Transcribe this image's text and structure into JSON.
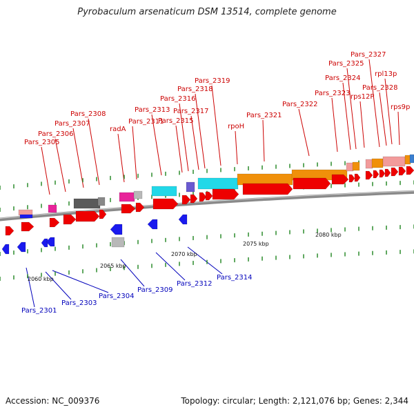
{
  "title": "Pyrobaculum arsenaticum DSM 13514, complete genome",
  "footer": {
    "accession": "Accession: NC_009376",
    "topology": "Topology: circular; Length: 2,121,076 bp; Genes: 2,344"
  },
  "scale_labels": [
    "2060 kbp",
    "2065 kbp",
    "2070 kbp",
    "2075 kbp",
    "2080 kbp"
  ],
  "top_labels": [
    "Pars_2305",
    "Pars_2306",
    "Pars_2307",
    "Pars_2308",
    "radA",
    "Pars_2311",
    "Pars_2313",
    "Pars_2315",
    "Pars_2316",
    "Pars_2317",
    "Pars_2318",
    "Pars_2319",
    "rpoH",
    "Pars_2321",
    "Pars_2322",
    "Pars_2323",
    "Pars_2324",
    "Pars_2325",
    "Pars_2327",
    "rps12P",
    "Pars_2328",
    "rpl13p",
    "rps9p"
  ],
  "bottom_labels": [
    "Pars_2301",
    "Pars_2303",
    "Pars_2304",
    "Pars_2309",
    "Pars_2312",
    "Pars_2314"
  ],
  "colors": {
    "forward_gene": "#ee0000",
    "reverse_gene": "#1a1aee",
    "label_forward": "#cc0000",
    "label_reverse": "#0000bb",
    "rna_cyan": "#22d8e8",
    "rna_orange": "#f0900a",
    "rna_pink": "#f29b9b",
    "rna_magenta": "#e8249a",
    "rna_purple": "#6a5ad0",
    "rna_grey": "#b8b8b8",
    "rna_dark": "#5a5a5a",
    "backbone": "#8a8a8a",
    "tick": "#2a8a2a"
  }
}
